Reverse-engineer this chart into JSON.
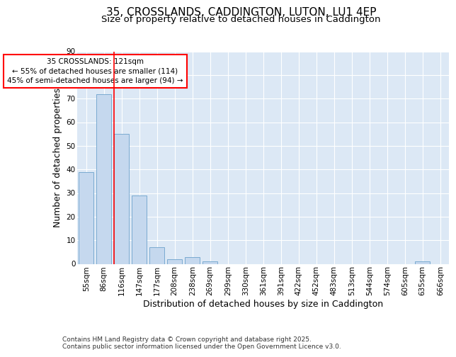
{
  "title1": "35, CROSSLANDS, CADDINGTON, LUTON, LU1 4EP",
  "title2": "Size of property relative to detached houses in Caddington",
  "xlabel": "Distribution of detached houses by size in Caddington",
  "ylabel": "Number of detached properties",
  "categories": [
    "55sqm",
    "86sqm",
    "116sqm",
    "147sqm",
    "177sqm",
    "208sqm",
    "238sqm",
    "269sqm",
    "299sqm",
    "330sqm",
    "361sqm",
    "391sqm",
    "422sqm",
    "452sqm",
    "483sqm",
    "513sqm",
    "544sqm",
    "574sqm",
    "605sqm",
    "635sqm",
    "666sqm"
  ],
  "values": [
    39,
    72,
    55,
    29,
    7,
    2,
    3,
    1,
    0,
    0,
    0,
    0,
    0,
    0,
    0,
    0,
    0,
    0,
    0,
    1,
    0
  ],
  "bar_color": "#c5d8ee",
  "bar_edgecolor": "#7aaad0",
  "redline_index": 2,
  "redline_label": "35 CROSSLANDS: 121sqm",
  "annotation_line1": "← 55% of detached houses are smaller (114)",
  "annotation_line2": "45% of semi-detached houses are larger (94) →",
  "ylim": [
    0,
    90
  ],
  "yticks": [
    0,
    10,
    20,
    30,
    40,
    50,
    60,
    70,
    80,
    90
  ],
  "background_color": "#dce8f5",
  "grid_color": "#ffffff",
  "footer1": "Contains HM Land Registry data © Crown copyright and database right 2025.",
  "footer2": "Contains public sector information licensed under the Open Government Licence v3.0.",
  "title_fontsize": 11,
  "subtitle_fontsize": 9.5,
  "axis_label_fontsize": 9,
  "tick_fontsize": 7.5,
  "annotation_fontsize": 7.5
}
